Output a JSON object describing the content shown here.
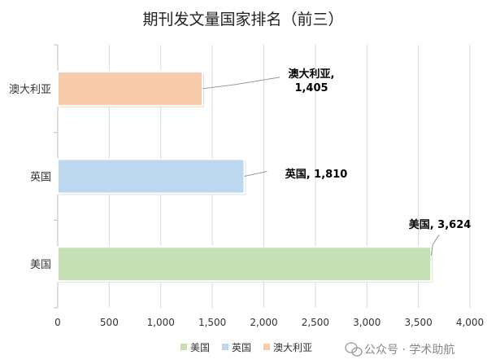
{
  "chart_data": {
    "type": "bar",
    "orientation": "horizontal",
    "title": "期刊发文量国家排名（前三）",
    "categories": [
      "美国",
      "英国",
      "澳大利亚"
    ],
    "values": [
      3624,
      1810,
      1405
    ],
    "data_labels": [
      "美国, 3,624",
      "英国, 1,810",
      "澳大利亚,\n1,405"
    ],
    "xlim": [
      0,
      4000
    ],
    "x_ticks": [
      0,
      500,
      1000,
      1500,
      2000,
      2500,
      3000,
      3500,
      4000
    ],
    "x_tick_labels": [
      "0",
      "500",
      "1,000",
      "1,500",
      "2,000",
      "2,500",
      "3,000",
      "3,500",
      "4,000"
    ],
    "grid": true,
    "legend_position": "bottom",
    "legend": [
      {
        "name": "美国",
        "color": "#c5e0b4"
      },
      {
        "name": "英国",
        "color": "#bdd7ee"
      },
      {
        "name": "澳大利亚",
        "color": "#f8cbad"
      }
    ]
  },
  "watermark": "公众号 · 学术助航",
  "watermark_icon": "wechat-icon"
}
